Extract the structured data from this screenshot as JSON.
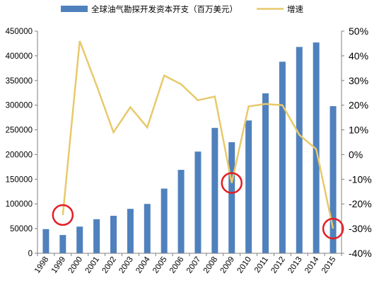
{
  "chart_data": {
    "type": "bar",
    "categories": [
      "1998",
      "1999",
      "2000",
      "2001",
      "2002",
      "2003",
      "2004",
      "2005",
      "2006",
      "2007",
      "2008",
      "2009",
      "2010",
      "2011",
      "2012",
      "2013",
      "2014",
      "2015"
    ],
    "series": [
      {
        "name": "全球油气勘探开发资本开支（百万美元）",
        "type": "bar",
        "axis": "left",
        "color": "#4f81bd",
        "values": [
          49000,
          37000,
          54000,
          69000,
          76000,
          90000,
          100000,
          131000,
          169000,
          206000,
          254000,
          225000,
          269000,
          324000,
          388000,
          418000,
          427000,
          298000
        ]
      },
      {
        "name": "增速",
        "type": "line",
        "axis": "right",
        "color": "#e8c96a",
        "values": [
          null,
          -24.5,
          46,
          28,
          9,
          19.2,
          11,
          32,
          28.5,
          22,
          23.5,
          -11.5,
          19.5,
          20.5,
          20,
          8,
          2.2,
          -30
        ]
      }
    ],
    "left_axis": {
      "min": 0,
      "max": 450000,
      "step": 50000,
      "ticks": [
        "0",
        "50000",
        "100000",
        "150000",
        "200000",
        "250000",
        "300000",
        "350000",
        "400000",
        "450000"
      ]
    },
    "right_axis": {
      "min": -40,
      "max": 50,
      "step": 10,
      "ticks": [
        "-40%",
        "-30%",
        "-20%",
        "-10%",
        "0%",
        "10%",
        "20%",
        "30%",
        "40%",
        "50%"
      ]
    },
    "highlights": [
      {
        "category": "1999",
        "value": -24.5,
        "color": "#e31e24"
      },
      {
        "category": "2009",
        "value": -11.5,
        "color": "#e31e24"
      },
      {
        "category": "2015",
        "value": -30,
        "color": "#e31e24"
      }
    ],
    "legend_position": "top",
    "grid": false,
    "title": "",
    "xlabel": "",
    "ylabel": ""
  }
}
